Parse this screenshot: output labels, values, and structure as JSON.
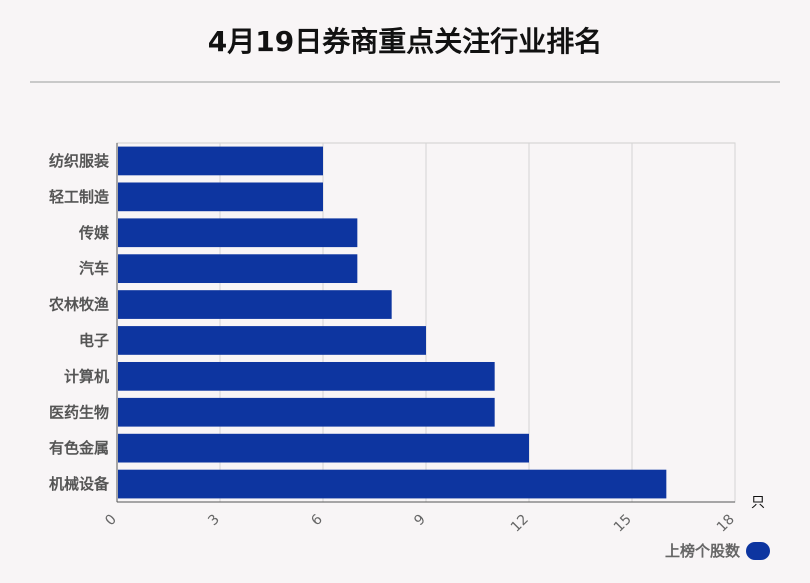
{
  "chart_data": {
    "type": "bar",
    "orientation": "horizontal",
    "title": "4月19日券商重点关注行业排名",
    "categories": [
      "纺织服装",
      "轻工制造",
      "传媒",
      "汽车",
      "农林牧渔",
      "电子",
      "计算机",
      "医药生物",
      "有色金属",
      "机械设备"
    ],
    "series": [
      {
        "name": "上榜个股数",
        "values": [
          6,
          6,
          7,
          7,
          8,
          9,
          11,
          11,
          12,
          16
        ]
      }
    ],
    "xlim": [
      0,
      18
    ],
    "xticks": [
      0,
      3,
      6,
      9,
      12,
      15,
      18
    ],
    "xunit": "只",
    "grid": true,
    "legend": "bottom-right",
    "bar_color": "#0d35a0"
  }
}
